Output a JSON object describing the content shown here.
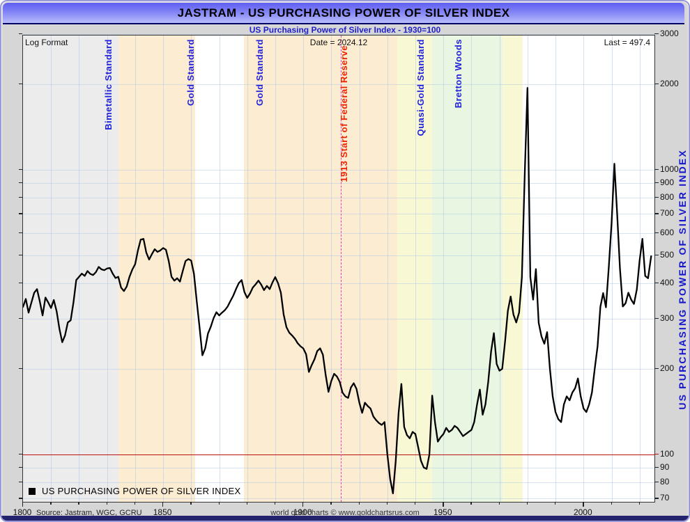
{
  "header": {
    "title": "JASTRAM - US PURCHASING POWER OF SILVER INDEX",
    "subtitle": "US Purchasing Power of Silver Index - 1930=100"
  },
  "plot_info": {
    "format_label": "Log Format",
    "date_label": "Date = 2024.12",
    "last_label": "Last = 497.4"
  },
  "legend": {
    "series_label": "US PURCHASING POWER OF SILVER INDEX"
  },
  "footer": {
    "source": "Source: Jastram, WGC, GCRU",
    "credit": "world gold charts © www.goldchartsrus.com"
  },
  "colors": {
    "band_gray": "#ececec",
    "band_peach": "#fcecd2",
    "band_yellow": "#f8f9d4",
    "band_green": "#e9f7e2",
    "series": "#000000",
    "ref_line_red": "#bb1111",
    "fed_line_magenta": "#f23cc8",
    "label_blue": "#2222dd",
    "label_red": "#ee2200",
    "axis_title_blue": "#1515cc"
  },
  "chart_data": {
    "type": "line",
    "title": "JASTRAM - US PURCHASING POWER OF SILVER INDEX",
    "subtitle": "US Purchasing Power of Silver Index - 1930=100",
    "y_axis_label": "US PURCHASING POWER OF SILVER INDEX",
    "y_scale": "log",
    "y_range": [
      68,
      3100
    ],
    "y_ticks": [
      3000,
      2000,
      1000,
      900,
      800,
      700,
      600,
      500,
      400,
      300,
      200,
      100,
      90,
      80,
      70
    ],
    "x_range": [
      1800,
      2025.3
    ],
    "x_major_ticks": [
      1800,
      1850,
      1900,
      1950,
      2000
    ],
    "x_minor_step": 10,
    "grid": true,
    "legend_position": "bottom-left",
    "last_value": 497.4,
    "as_of_date": "2024.12",
    "reference_lines": {
      "horizontal": {
        "value": 100,
        "color": "#bb1111"
      },
      "vertical": {
        "year": 1913.4,
        "style": "dashed",
        "color": "#f23cc8",
        "label": "1913 Start of Federal Reserve",
        "label_year": 1916.2
      }
    },
    "bands": [
      {
        "label": "Bimetallic Standard",
        "from": 1800,
        "to": 1834,
        "color": "#ececec",
        "label_year": 1832.0
      },
      {
        "label": "Gold Standard",
        "from": 1834,
        "to": 1861.3,
        "color": "#fcecd2",
        "label_year": 1861.3
      },
      {
        "label": "Gold Standard",
        "from": 1878.8,
        "to": 1933.5,
        "color": "#fcecd2",
        "label_year": 1886.0
      },
      {
        "label": "Quasi-Gold Standard",
        "from": 1933.5,
        "to": 1946,
        "color": "#f8f9d4",
        "label_year": 1943.5
      },
      {
        "label": "Bretton Woods",
        "from": 1946,
        "to": 1971,
        "color": "#e9f7e2",
        "label_year": 1957.0
      },
      {
        "label": "",
        "from": 1971,
        "to": 1978.2,
        "color": "#f8f9d4",
        "label_year": null
      }
    ],
    "series": [
      {
        "name": "US PURCHASING POWER OF SILVER INDEX",
        "color": "#000000",
        "points": [
          [
            1800,
            330
          ],
          [
            1801,
            352
          ],
          [
            1802,
            315
          ],
          [
            1803,
            342
          ],
          [
            1804,
            370
          ],
          [
            1805,
            381
          ],
          [
            1806,
            345
          ],
          [
            1807,
            308
          ],
          [
            1808,
            356
          ],
          [
            1809,
            342
          ],
          [
            1810,
            327
          ],
          [
            1811,
            349
          ],
          [
            1812,
            318
          ],
          [
            1813,
            276
          ],
          [
            1814,
            248
          ],
          [
            1815,
            262
          ],
          [
            1816,
            291
          ],
          [
            1817,
            296
          ],
          [
            1818,
            342
          ],
          [
            1819,
            410
          ],
          [
            1820,
            421
          ],
          [
            1821,
            432
          ],
          [
            1822,
            424
          ],
          [
            1823,
            441
          ],
          [
            1824,
            431
          ],
          [
            1825,
            427
          ],
          [
            1826,
            437
          ],
          [
            1827,
            456
          ],
          [
            1828,
            447
          ],
          [
            1829,
            444
          ],
          [
            1830,
            450
          ],
          [
            1831,
            452
          ],
          [
            1832,
            432
          ],
          [
            1833,
            417
          ],
          [
            1834,
            421
          ],
          [
            1835,
            386
          ],
          [
            1836,
            375
          ],
          [
            1837,
            389
          ],
          [
            1838,
            421
          ],
          [
            1839,
            446
          ],
          [
            1840,
            466
          ],
          [
            1841,
            521
          ],
          [
            1842,
            569
          ],
          [
            1843,
            572
          ],
          [
            1844,
            512
          ],
          [
            1845,
            484
          ],
          [
            1846,
            506
          ],
          [
            1847,
            526
          ],
          [
            1848,
            515
          ],
          [
            1849,
            521
          ],
          [
            1850,
            531
          ],
          [
            1851,
            524
          ],
          [
            1852,
            478
          ],
          [
            1853,
            421
          ],
          [
            1854,
            408
          ],
          [
            1855,
            416
          ],
          [
            1856,
            405
          ],
          [
            1857,
            441
          ],
          [
            1858,
            478
          ],
          [
            1859,
            486
          ],
          [
            1860,
            480
          ],
          [
            1861,
            431
          ],
          [
            1862,
            345
          ],
          [
            1863,
            280
          ],
          [
            1864,
            223
          ],
          [
            1865,
            236
          ],
          [
            1866,
            266
          ],
          [
            1867,
            281
          ],
          [
            1868,
            301
          ],
          [
            1869,
            316
          ],
          [
            1870,
            308
          ],
          [
            1871,
            315
          ],
          [
            1872,
            321
          ],
          [
            1873,
            331
          ],
          [
            1874,
            346
          ],
          [
            1875,
            361
          ],
          [
            1876,
            381
          ],
          [
            1877,
            400
          ],
          [
            1878,
            410
          ],
          [
            1879,
            372
          ],
          [
            1880,
            355
          ],
          [
            1881,
            368
          ],
          [
            1882,
            386
          ],
          [
            1883,
            396
          ],
          [
            1884,
            408
          ],
          [
            1885,
            395
          ],
          [
            1886,
            378
          ],
          [
            1887,
            391
          ],
          [
            1888,
            381
          ],
          [
            1889,
            402
          ],
          [
            1890,
            420
          ],
          [
            1891,
            400
          ],
          [
            1892,
            370
          ],
          [
            1893,
            310
          ],
          [
            1894,
            280
          ],
          [
            1895,
            268
          ],
          [
            1896,
            262
          ],
          [
            1897,
            255
          ],
          [
            1898,
            246
          ],
          [
            1899,
            240
          ],
          [
            1900,
            236
          ],
          [
            1901,
            225
          ],
          [
            1902,
            195
          ],
          [
            1903,
            206
          ],
          [
            1904,
            216
          ],
          [
            1905,
            231
          ],
          [
            1906,
            236
          ],
          [
            1907,
            224
          ],
          [
            1908,
            190
          ],
          [
            1909,
            166
          ],
          [
            1910,
            181
          ],
          [
            1911,
            192
          ],
          [
            1912,
            188
          ],
          [
            1913,
            180
          ],
          [
            1914,
            165
          ],
          [
            1915,
            160
          ],
          [
            1916,
            158
          ],
          [
            1917,
            172
          ],
          [
            1918,
            178
          ],
          [
            1919,
            170
          ],
          [
            1920,
            152
          ],
          [
            1921,
            140
          ],
          [
            1922,
            152
          ],
          [
            1923,
            148
          ],
          [
            1924,
            145
          ],
          [
            1925,
            136
          ],
          [
            1926,
            132
          ],
          [
            1927,
            129
          ],
          [
            1928,
            127
          ],
          [
            1929,
            130
          ],
          [
            1930,
            100
          ],
          [
            1931,
            82
          ],
          [
            1932,
            73
          ],
          [
            1933,
            95
          ],
          [
            1934,
            140
          ],
          [
            1935,
            177
          ],
          [
            1936,
            125
          ],
          [
            1937,
            117
          ],
          [
            1938,
            114
          ],
          [
            1939,
            120
          ],
          [
            1940,
            118
          ],
          [
            1941,
            106
          ],
          [
            1942,
            95
          ],
          [
            1943,
            90
          ],
          [
            1944,
            89
          ],
          [
            1945,
            100
          ],
          [
            1946,
            161
          ],
          [
            1947,
            130
          ],
          [
            1948,
            111
          ],
          [
            1949,
            115
          ],
          [
            1950,
            118
          ],
          [
            1951,
            124
          ],
          [
            1952,
            120
          ],
          [
            1953,
            122
          ],
          [
            1954,
            126
          ],
          [
            1955,
            124
          ],
          [
            1956,
            120
          ],
          [
            1957,
            116
          ],
          [
            1958,
            118
          ],
          [
            1959,
            120
          ],
          [
            1960,
            122
          ],
          [
            1961,
            130
          ],
          [
            1962,
            150
          ],
          [
            1963,
            169
          ],
          [
            1964,
            138
          ],
          [
            1965,
            150
          ],
          [
            1966,
            180
          ],
          [
            1967,
            230
          ],
          [
            1968,
            267
          ],
          [
            1969,
            208
          ],
          [
            1970,
            197
          ],
          [
            1971,
            200
          ],
          [
            1972,
            250
          ],
          [
            1973,
            320
          ],
          [
            1974,
            359
          ],
          [
            1975,
            310
          ],
          [
            1976,
            291
          ],
          [
            1977,
            315
          ],
          [
            1978,
            420
          ],
          [
            1979,
            950
          ],
          [
            1980,
            1940
          ],
          [
            1981,
            420
          ],
          [
            1982,
            350
          ],
          [
            1983,
            448
          ],
          [
            1984,
            290
          ],
          [
            1985,
            260
          ],
          [
            1986,
            245
          ],
          [
            1987,
            269
          ],
          [
            1988,
            200
          ],
          [
            1989,
            160
          ],
          [
            1990,
            141
          ],
          [
            1991,
            133
          ],
          [
            1992,
            130
          ],
          [
            1993,
            150
          ],
          [
            1994,
            160
          ],
          [
            1995,
            155
          ],
          [
            1996,
            165
          ],
          [
            1997,
            171
          ],
          [
            1998,
            185
          ],
          [
            1999,
            160
          ],
          [
            2000,
            145
          ],
          [
            2001,
            141
          ],
          [
            2002,
            150
          ],
          [
            2003,
            165
          ],
          [
            2004,
            200
          ],
          [
            2005,
            240
          ],
          [
            2006,
            330
          ],
          [
            2007,
            369
          ],
          [
            2008,
            329
          ],
          [
            2009,
            456
          ],
          [
            2010,
            650
          ],
          [
            2011,
            1050
          ],
          [
            2012,
            700
          ],
          [
            2013,
            450
          ],
          [
            2014,
            331
          ],
          [
            2015,
            340
          ],
          [
            2016,
            370
          ],
          [
            2017,
            350
          ],
          [
            2018,
            338
          ],
          [
            2019,
            380
          ],
          [
            2020,
            480
          ],
          [
            2021,
            572
          ],
          [
            2022,
            424
          ],
          [
            2023,
            416
          ],
          [
            2024.12,
            497.4
          ]
        ]
      }
    ]
  }
}
